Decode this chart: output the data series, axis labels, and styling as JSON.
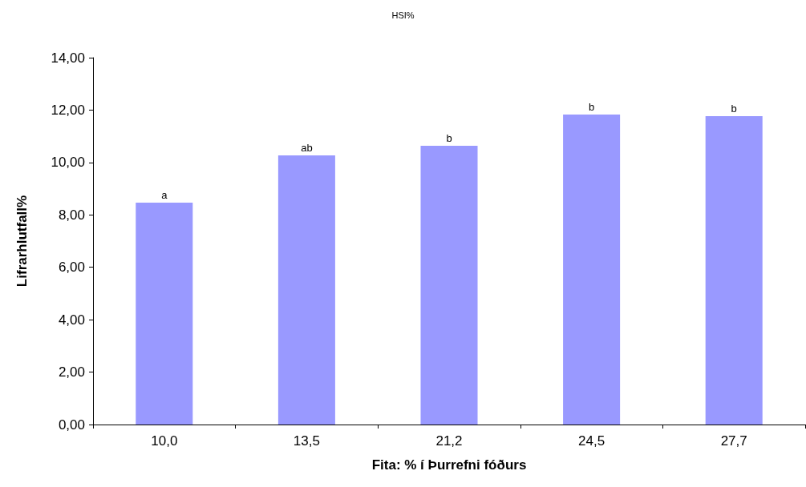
{
  "chart_data": {
    "type": "bar",
    "title": "HSI%",
    "xlabel": "Fita: % í Þurrefni fóðurs",
    "ylabel": "Lifrarhlutfall%",
    "categories": [
      "10,0",
      "13,5",
      "21,2",
      "24,5",
      "27,7"
    ],
    "values": [
      8.47,
      10.27,
      10.64,
      11.83,
      11.77
    ],
    "value_labels": [
      "a",
      "ab",
      "b",
      "b",
      "b"
    ],
    "color": "#9999ff",
    "ylim": [
      0,
      14
    ],
    "yticks": [
      {
        "value": 0,
        "label": "0,00"
      },
      {
        "value": 2,
        "label": "2,00"
      },
      {
        "value": 4,
        "label": "4,00"
      },
      {
        "value": 6,
        "label": "6,00"
      },
      {
        "value": 8,
        "label": "8,00"
      },
      {
        "value": 10,
        "label": "10,00"
      },
      {
        "value": 12,
        "label": "12,00"
      },
      {
        "value": 14,
        "label": "14,00"
      }
    ],
    "grid": false
  }
}
